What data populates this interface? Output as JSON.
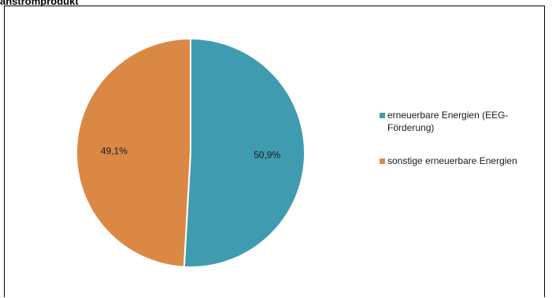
{
  "header": {
    "cut_title": "anstromprodukt"
  },
  "colors": {
    "series_teal": "#3f9bb0",
    "series_orange": "#dc8845",
    "frame": "#000000"
  },
  "chart_data": {
    "type": "pie",
    "categories": [
      "erneuerbare Energien (EEG-Förderung)",
      "sonstige erneuerbare Energien"
    ],
    "values": [
      50.9,
      49.1
    ],
    "value_labels": [
      "50,9%",
      "49,1%"
    ],
    "colors": [
      "#3f9bb0",
      "#dc8845"
    ],
    "legend": {
      "position": "right",
      "entries": [
        "erneuerbare Energien (EEG-Förderung)",
        "sonstige erneuerbare Energien"
      ]
    }
  }
}
